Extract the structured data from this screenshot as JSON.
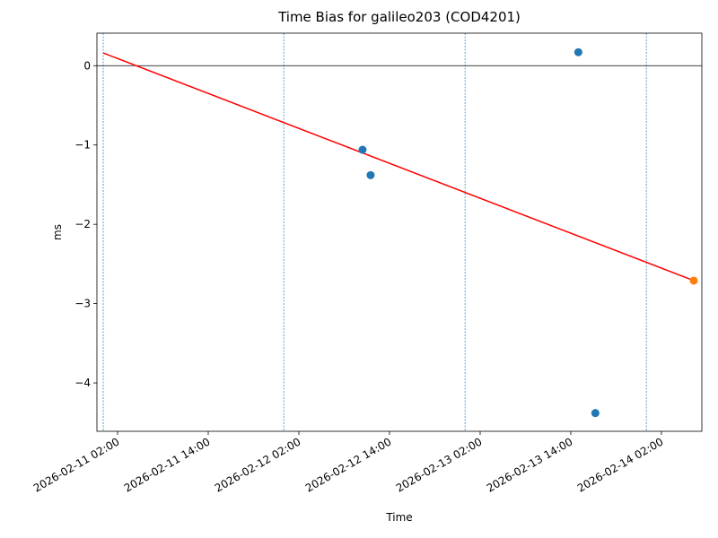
{
  "chart_data": {
    "type": "scatter",
    "title": "Time Bias for galileo203 (COD4201)",
    "x_label": "Time",
    "y_label": "ms",
    "xlim": [
      "2026-02-10 23:16",
      "2026-02-14 07:21"
    ],
    "ylim": [
      -4.61,
      0.41
    ],
    "xticks": [
      "2026-02-11 02:00",
      "2026-02-11 14:00",
      "2026-02-12 02:00",
      "2026-02-12 14:00",
      "2026-02-13 02:00",
      "2026-02-13 14:00",
      "2026-02-14 02:00"
    ],
    "yticks": [
      {
        "value": -4,
        "label": "−4"
      },
      {
        "value": -3,
        "label": "−3"
      },
      {
        "value": -2,
        "label": "−2"
      },
      {
        "value": -1,
        "label": "−1"
      },
      0
    ],
    "vlines": [
      "2026-02-11 00:06",
      "2026-02-12 00:00",
      "2026-02-13 00:00",
      "2026-02-14 00:00"
    ],
    "vline_color": "#1f77b4",
    "hline": 0,
    "series": [
      {
        "type": "scatter",
        "color": "#1f77b4",
        "x": [
          "2026-02-12 10:26",
          "2026-02-12 11:30",
          "2026-02-13 15:00",
          "2026-02-13 17:15"
        ],
        "values": [
          -1.06,
          -1.38,
          0.17,
          -4.38
        ]
      },
      {
        "type": "scatter",
        "color": "#ff7f0e",
        "x": [
          "2026-02-14 06:17"
        ],
        "values": [
          -2.71
        ]
      },
      {
        "type": "line",
        "color": "#ff0000",
        "x": [
          "2026-02-11 00:06",
          "2026-02-14 06:17"
        ],
        "values": [
          0.16,
          -2.71
        ]
      }
    ]
  }
}
